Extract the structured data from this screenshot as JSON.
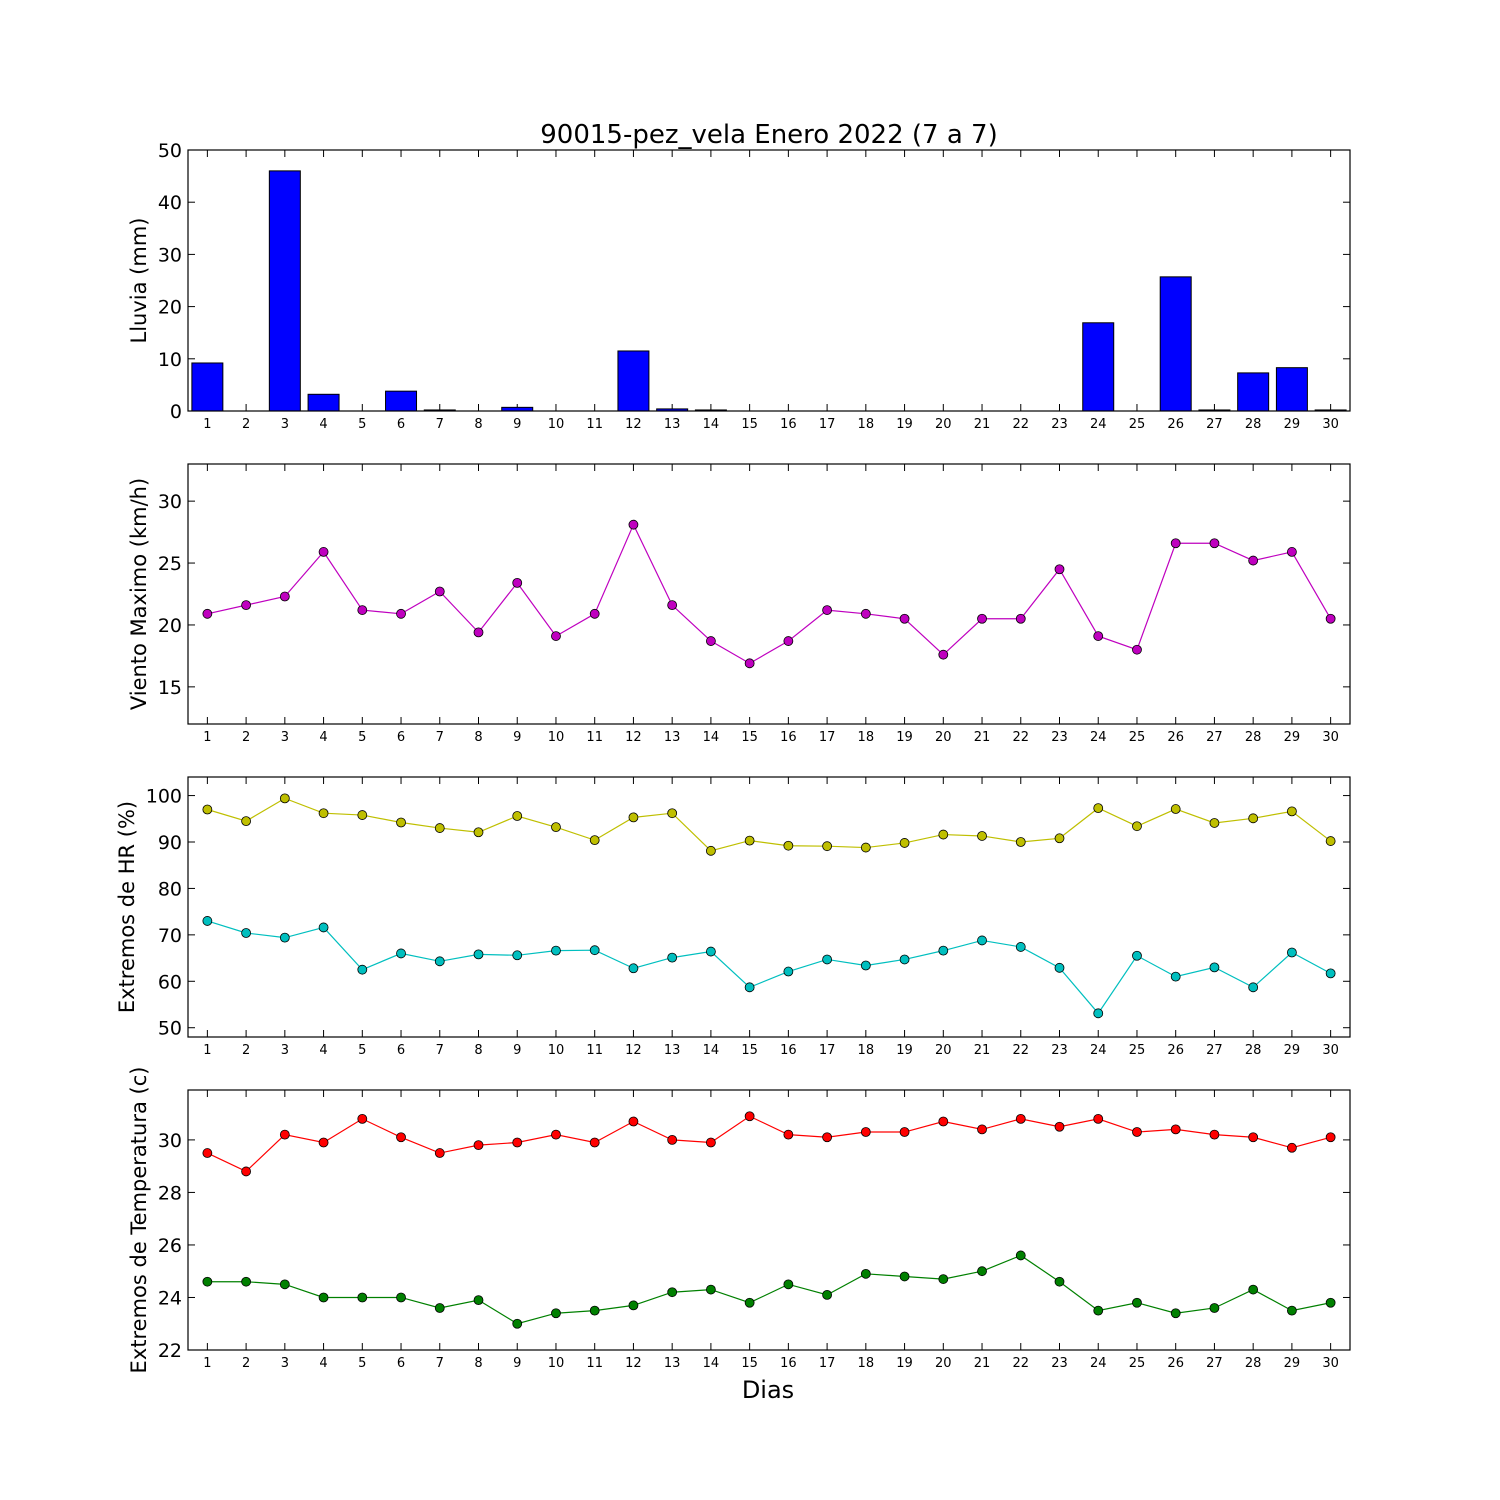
{
  "title": "90015-pez_vela Enero 2022  (7 a 7)",
  "xlabel": "Dias",
  "chart_data": [
    {
      "type": "bar",
      "ylabel": "Lluvia (mm)",
      "ylim": [
        0,
        50
      ],
      "yticks": [
        0,
        10,
        20,
        30,
        40,
        50
      ],
      "xlim": [
        0.5,
        30.5
      ],
      "x": [
        1,
        2,
        3,
        4,
        5,
        6,
        7,
        8,
        9,
        10,
        11,
        12,
        13,
        14,
        15,
        16,
        17,
        18,
        19,
        20,
        21,
        22,
        23,
        24,
        25,
        26,
        27,
        28,
        29,
        30
      ],
      "color": "#0000ff",
      "values": [
        9.2,
        0,
        46,
        3.2,
        0,
        3.8,
        0.2,
        0,
        0.7,
        0,
        0,
        11.5,
        0.4,
        0.2,
        0,
        0,
        0,
        0,
        0,
        0,
        0,
        0,
        0,
        16.9,
        0,
        25.7,
        0.2,
        7.3,
        8.3,
        0.2
      ]
    },
    {
      "type": "line",
      "ylabel": "Viento Maximo (km/h)",
      "ylim": [
        12,
        33
      ],
      "yticks": [
        15,
        20,
        25,
        30
      ],
      "xlim": [
        0.5,
        30.5
      ],
      "x": [
        1,
        2,
        3,
        4,
        5,
        6,
        7,
        8,
        9,
        10,
        11,
        12,
        13,
        14,
        15,
        16,
        17,
        18,
        19,
        20,
        21,
        22,
        23,
        24,
        25,
        26,
        27,
        28,
        29,
        30
      ],
      "series": [
        {
          "color": "#bf00bf",
          "values": [
            20.9,
            21.6,
            22.3,
            25.9,
            21.2,
            20.9,
            22.7,
            19.4,
            23.4,
            19.1,
            20.9,
            28.1,
            21.6,
            18.7,
            16.9,
            18.7,
            21.2,
            20.9,
            20.5,
            17.6,
            20.5,
            20.5,
            24.5,
            19.1,
            18.0,
            26.6,
            26.6,
            25.2,
            25.9,
            20.5
          ]
        }
      ]
    },
    {
      "type": "line",
      "ylabel": "Extremos de HR (%)",
      "ylim": [
        48,
        104
      ],
      "yticks": [
        50,
        60,
        70,
        80,
        90,
        100
      ],
      "xlim": [
        0.5,
        30.5
      ],
      "x": [
        1,
        2,
        3,
        4,
        5,
        6,
        7,
        8,
        9,
        10,
        11,
        12,
        13,
        14,
        15,
        16,
        17,
        18,
        19,
        20,
        21,
        22,
        23,
        24,
        25,
        26,
        27,
        28,
        29,
        30
      ],
      "series": [
        {
          "color": "#bfbf00",
          "values": [
            97,
            94.5,
            99.4,
            96.2,
            95.8,
            94.2,
            93,
            92.1,
            95.6,
            93.2,
            90.4,
            95.3,
            96.2,
            88.1,
            90.3,
            89.2,
            89.1,
            88.8,
            89.8,
            91.6,
            91.3,
            90,
            90.8,
            97.3,
            93.4,
            97.1,
            94.1,
            95.1,
            96.6,
            90.2
          ]
        },
        {
          "color": "#00bfbf",
          "values": [
            73,
            70.4,
            69.4,
            71.6,
            62.5,
            66,
            64.3,
            65.8,
            65.6,
            66.6,
            66.7,
            62.8,
            65.1,
            66.4,
            58.7,
            62.1,
            64.7,
            63.4,
            64.7,
            66.6,
            68.8,
            67.4,
            62.9,
            53.1,
            65.5,
            61,
            63,
            58.7,
            66.2,
            61.7
          ]
        }
      ]
    },
    {
      "type": "line",
      "ylabel": "Extremos de Temperatura (c)",
      "ylim": [
        22,
        31.9
      ],
      "yticks": [
        22,
        24,
        26,
        28,
        30
      ],
      "xlim": [
        0.5,
        30.5
      ],
      "x": [
        1,
        2,
        3,
        4,
        5,
        6,
        7,
        8,
        9,
        10,
        11,
        12,
        13,
        14,
        15,
        16,
        17,
        18,
        19,
        20,
        21,
        22,
        23,
        24,
        25,
        26,
        27,
        28,
        29,
        30
      ],
      "series": [
        {
          "color": "#ff0000",
          "values": [
            29.5,
            28.8,
            30.2,
            29.9,
            30.8,
            30.1,
            29.5,
            29.8,
            29.9,
            30.2,
            29.9,
            30.7,
            30,
            29.9,
            30.9,
            30.2,
            30.1,
            30.3,
            30.3,
            30.7,
            30.4,
            30.8,
            30.5,
            30.8,
            30.3,
            30.4,
            30.2,
            30.1,
            29.7,
            30.1
          ]
        },
        {
          "color": "#008000",
          "values": [
            24.6,
            24.6,
            24.5,
            24,
            24,
            24,
            23.6,
            23.9,
            23,
            23.4,
            23.5,
            23.7,
            24.2,
            24.3,
            23.8,
            24.5,
            24.1,
            24.9,
            24.8,
            24.7,
            25,
            25.6,
            24.6,
            23.5,
            23.8,
            23.4,
            23.6,
            24.3,
            23.5,
            23.8
          ]
        }
      ]
    }
  ]
}
